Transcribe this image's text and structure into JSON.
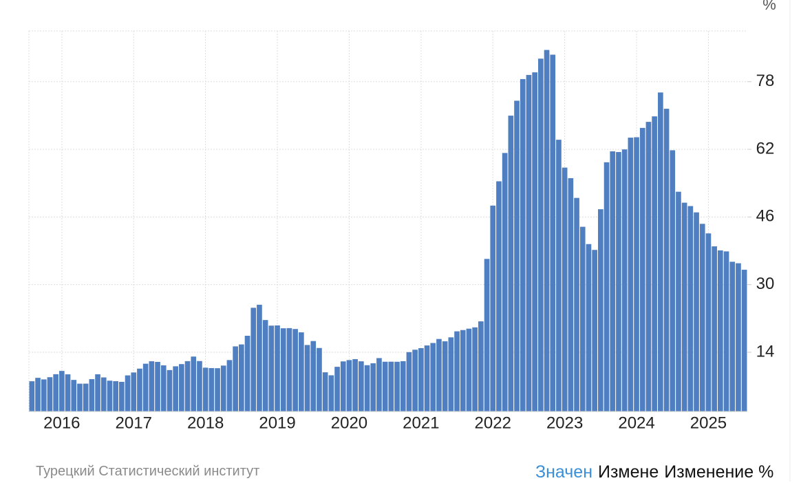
{
  "chart_data": {
    "type": "bar",
    "unit": "%",
    "source": "Турецкий Статистический институт",
    "tabs": [
      "Значен",
      "Измене",
      "Изменение %"
    ],
    "categories": [
      null,
      null,
      null,
      null,
      null,
      "2016",
      null,
      null,
      null,
      null,
      null,
      null,
      null,
      null,
      null,
      null,
      null,
      "2017",
      null,
      null,
      null,
      null,
      null,
      null,
      null,
      null,
      null,
      null,
      null,
      "2018",
      null,
      null,
      null,
      null,
      null,
      null,
      null,
      null,
      null,
      null,
      null,
      "2019",
      null,
      null,
      null,
      null,
      null,
      null,
      null,
      null,
      null,
      null,
      null,
      "2020",
      null,
      null,
      null,
      null,
      null,
      null,
      null,
      null,
      null,
      null,
      null,
      "2021",
      null,
      null,
      null,
      null,
      null,
      null,
      null,
      null,
      null,
      null,
      null,
      "2022",
      null,
      null,
      null,
      null,
      null,
      null,
      null,
      null,
      null,
      null,
      null,
      "2023",
      null,
      null,
      null,
      null,
      null,
      null,
      null,
      null,
      null,
      null,
      null,
      "2024",
      null,
      null,
      null,
      null,
      null,
      null,
      null,
      null,
      null,
      null,
      null,
      "2025",
      null,
      null,
      null,
      null,
      null,
      null
    ],
    "values": [
      7.14,
      7.95,
      7.58,
      8.1,
      8.81,
      9.58,
      8.78,
      7.46,
      6.57,
      6.58,
      7.64,
      8.79,
      8.05,
      7.28,
      7.16,
      7.0,
      8.53,
      9.22,
      10.13,
      11.29,
      11.87,
      11.72,
      10.9,
      9.79,
      10.68,
      11.2,
      11.9,
      12.98,
      11.92,
      10.35,
      10.26,
      10.23,
      10.85,
      12.15,
      15.39,
      15.85,
      17.9,
      24.52,
      25.24,
      21.62,
      20.3,
      20.35,
      19.67,
      19.71,
      19.5,
      18.71,
      15.72,
      16.65,
      15.01,
      9.26,
      8.55,
      10.56,
      11.84,
      12.15,
      12.37,
      11.86,
      10.94,
      11.39,
      12.62,
      11.76,
      11.77,
      11.75,
      11.89,
      14.03,
      14.6,
      14.97,
      15.61,
      16.19,
      17.14,
      16.59,
      17.53,
      18.95,
      19.25,
      19.58,
      19.89,
      21.31,
      36.08,
      48.69,
      54.44,
      61.14,
      69.97,
      73.5,
      78.62,
      79.6,
      80.21,
      83.45,
      85.51,
      84.39,
      64.27,
      57.68,
      55.18,
      50.51,
      43.68,
      39.59,
      38.21,
      47.83,
      58.94,
      61.53,
      61.36,
      61.98,
      64.77,
      64.86,
      67.07,
      68.5,
      69.8,
      75.45,
      71.6,
      61.78,
      51.97,
      49.38,
      48.58,
      47.09,
      44.38,
      42.12,
      39.05,
      38.1,
      37.86,
      35.41,
      35.05,
      33.52
    ],
    "color": "#4f7fc0",
    "ylim": [
      0,
      90
    ],
    "yticks": [
      14,
      30,
      46,
      62,
      78
    ],
    "grid": true
  }
}
